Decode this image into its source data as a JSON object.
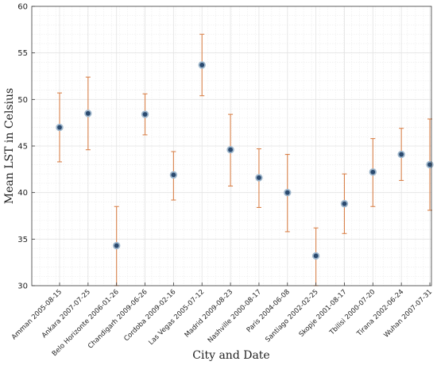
{
  "chart_data": {
    "type": "scatter",
    "title": "",
    "xlabel": "City and Date",
    "ylabel": "Mean LST in Celsius",
    "ylim": [
      30,
      60
    ],
    "yticks": [
      30,
      35,
      40,
      45,
      50,
      55,
      60
    ],
    "grid": true,
    "legend": "none",
    "categories": [
      "Amman 2005-08-15",
      "Ankara 2007-07-25",
      "Belo Horizonte 2006-01-26",
      "Chandigarh 2009-06-26",
      "Cordoba 2009-02-16",
      "Las Vegas 2005-07-12",
      "Madrid 2009-08-23",
      "Nashville 2000-08-17",
      "Paris 2004-06-08",
      "Santiago 2002-02-25",
      "Skopje 2001-08-17",
      "Tbilisi 2000-07-20",
      "Tirana 2002-06-24",
      "Wuhan 2007-07-31"
    ],
    "series": [
      {
        "values": [
          47.0,
          48.5,
          34.3,
          48.4,
          41.9,
          53.7,
          44.6,
          41.6,
          40.0,
          33.2,
          38.8,
          42.2,
          44.1,
          43.0
        ],
        "error_low": [
          43.3,
          44.6,
          30.0,
          46.2,
          39.2,
          50.4,
          40.7,
          38.4,
          35.8,
          30.0,
          35.6,
          38.5,
          41.3,
          38.1
        ],
        "error_high": [
          50.7,
          52.4,
          38.5,
          50.6,
          44.4,
          57.0,
          48.4,
          44.7,
          44.1,
          36.2,
          42.0,
          45.8,
          46.9,
          47.9
        ]
      }
    ],
    "colors": {
      "marker_fill": "#2b4a6f",
      "marker_edge": "#9fb7cc",
      "errorbar": "#d9824b",
      "grid": "#e3e3e3",
      "axis": "#3a3a3a"
    }
  }
}
